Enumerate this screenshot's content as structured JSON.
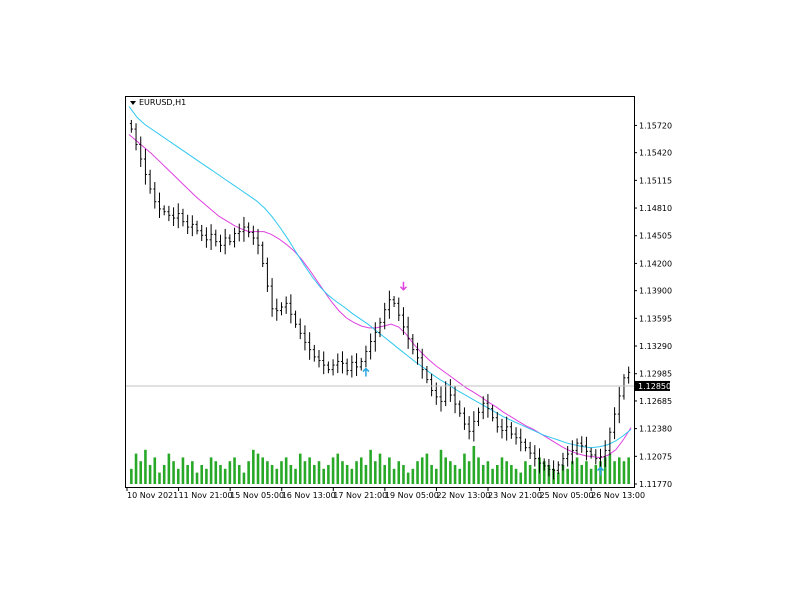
{
  "header": {
    "symbol_label": "EURUSD,H1",
    "menu_icon": "chevron-down-icon"
  },
  "price_axis": {
    "ticks": [
      "1.15720",
      "1.15420",
      "1.15115",
      "1.14810",
      "1.14505",
      "1.14200",
      "1.13900",
      "1.13595",
      "1.13290",
      "1.12985",
      "1.12685",
      "1.12380",
      "1.12075",
      "1.11770"
    ],
    "current_price": "1.12850"
  },
  "time_axis": {
    "labels": [
      "10 Nov 2021",
      "11 Nov 21:00",
      "15 Nov 05:00",
      "16 Nov 13:00",
      "17 Nov 21:00",
      "19 Nov 05:00",
      "22 Nov 13:00",
      "23 Nov 21:00",
      "25 Nov 05:00",
      "26 Nov 13:00"
    ]
  },
  "colors": {
    "candle": "#000000",
    "ma_fast": "#e040e0",
    "ma_slow": "#30c8f0",
    "volume": "#27a827",
    "current_price_line": "#c0c0c0",
    "arrow_up": "#29a6e0",
    "arrow_down": "#e040e0"
  },
  "chart_data": {
    "type": "candlestick",
    "title": "EURUSD,H1",
    "ylim": [
      1.1177,
      1.1589
    ],
    "close": [
      1.1568,
      1.1551,
      1.1535,
      1.1518,
      1.1502,
      1.1488,
      1.148,
      1.1477,
      1.1473,
      1.147,
      1.1475,
      1.1466,
      1.146,
      1.1463,
      1.1456,
      1.1451,
      1.1446,
      1.1452,
      1.1444,
      1.144,
      1.1448,
      1.1444,
      1.1453,
      1.1455,
      1.146,
      1.1454,
      1.1448,
      1.144,
      1.142,
      1.1395,
      1.137,
      1.1368,
      1.1372,
      1.1376,
      1.1364,
      1.1353,
      1.1343,
      1.1333,
      1.1325,
      1.1317,
      1.1313,
      1.1308,
      1.1303,
      1.1308,
      1.1312,
      1.131,
      1.1302,
      1.1311,
      1.1306,
      1.1312,
      1.1323,
      1.1334,
      1.1344,
      1.1355,
      1.1369,
      1.138,
      1.1376,
      1.1363,
      1.135,
      1.1337,
      1.1325,
      1.1316,
      1.1303,
      1.1292,
      1.128,
      1.1273,
      1.1268,
      1.1285,
      1.1275,
      1.1265,
      1.1255,
      1.1243,
      1.1235,
      1.1246,
      1.1256,
      1.1266,
      1.126,
      1.125,
      1.124,
      1.1236,
      1.124,
      1.1232,
      1.1228,
      1.1223,
      1.1217,
      1.1211,
      1.1205,
      1.12,
      1.1197,
      1.1193,
      1.1192,
      1.1198,
      1.1205,
      1.121,
      1.1214,
      1.1222,
      1.1219,
      1.1213,
      1.1209,
      1.1205,
      1.1207,
      1.1214,
      1.1234,
      1.1254,
      1.1274,
      1.1294,
      1.13
    ],
    "series": [
      {
        "name": "",
        "values": [
          1.1562,
          1.1555,
          1.1548,
          1.1541,
          1.1533,
          1.1525,
          1.1517,
          1.1509,
          1.1501,
          1.1493,
          1.1486,
          1.1479,
          1.1472,
          1.1467,
          1.1462,
          1.1458,
          1.1455,
          1.1455,
          1.1455,
          1.1452,
          1.1447,
          1.1441,
          1.1434,
          1.1425,
          1.1414,
          1.1402,
          1.139,
          1.1378,
          1.1368,
          1.136,
          1.1355,
          1.1351,
          1.1349,
          1.1349,
          1.1351,
          1.1353,
          1.135,
          1.1342,
          1.1331,
          1.1322,
          1.1314,
          1.1307,
          1.1301,
          1.1295,
          1.1289,
          1.1283,
          1.1278,
          1.1273,
          1.1267,
          1.1262,
          1.1256,
          1.1251,
          1.1246,
          1.1241,
          1.1237,
          1.1232,
          1.1227,
          1.1222,
          1.1217,
          1.1213,
          1.121,
          1.1208,
          1.1207,
          1.1206,
          1.1209,
          1.1215,
          1.1226,
          1.1239
        ]
      },
      {
        "name": "",
        "values": [
          1.1593,
          1.1581,
          1.1573,
          1.1567,
          1.1561,
          1.1555,
          1.1549,
          1.1543,
          1.1537,
          1.1531,
          1.1525,
          1.1519,
          1.1513,
          1.1507,
          1.1501,
          1.1495,
          1.1489,
          1.1481,
          1.1471,
          1.1459,
          1.1446,
          1.1432,
          1.1418,
          1.1405,
          1.1394,
          1.1385,
          1.1378,
          1.1372,
          1.1365,
          1.1359,
          1.1353,
          1.1346,
          1.1339,
          1.1332,
          1.1325,
          1.1318,
          1.1311,
          1.1305,
          1.1298,
          1.1292,
          1.1287,
          1.1281,
          1.1276,
          1.1271,
          1.1266,
          1.1261,
          1.1256,
          1.1251,
          1.1247,
          1.1243,
          1.1239,
          1.1235,
          1.1231,
          1.1228,
          1.1225,
          1.1222,
          1.122,
          1.1218,
          1.1217,
          1.1218,
          1.122,
          1.1224,
          1.123,
          1.1237
        ]
      }
    ],
    "volume": [
      4,
      8,
      6,
      9,
      5,
      7,
      3,
      5,
      8,
      6,
      4,
      7,
      5,
      6,
      3,
      5,
      4,
      7,
      6,
      5,
      4,
      6,
      7,
      5,
      3,
      6,
      9,
      8,
      7,
      6,
      5,
      4,
      6,
      7,
      5,
      4,
      8,
      6,
      7,
      5,
      6,
      4,
      5,
      7,
      8,
      6,
      5,
      4,
      6,
      7,
      5,
      9,
      6,
      8,
      5,
      7,
      4,
      6,
      5,
      3,
      4,
      6,
      7,
      8,
      5,
      4,
      9,
      7,
      6,
      5,
      4,
      8,
      6,
      10,
      7,
      5,
      6,
      4,
      5,
      7,
      6,
      5,
      4,
      3,
      6,
      5,
      4,
      7,
      6,
      5,
      4,
      3,
      5,
      4,
      6,
      7,
      5,
      6,
      4,
      5,
      6,
      7,
      8,
      6,
      7,
      6,
      7
    ],
    "signals": [
      {
        "type": "buy",
        "price": 1.1313
      },
      {
        "type": "sell",
        "price": 1.138
      },
      {
        "type": "buy",
        "price": 1.1204
      }
    ],
    "current_price": 1.1285,
    "yticks": [
      "1.15720",
      "1.15420",
      "1.15115",
      "1.14810",
      "1.14505",
      "1.14200",
      "1.13900",
      "1.13595",
      "1.13290",
      "1.12985",
      "1.12685",
      "1.12380",
      "1.12075",
      "1.11770"
    ],
    "xticks": [
      "10 Nov 2021",
      "11 Nov 21:00",
      "15 Nov 05:00",
      "16 Nov 13:00",
      "17 Nov 21:00",
      "19 Nov 05:00",
      "22 Nov 13:00",
      "23 Nov 21:00",
      "25 Nov 05:00",
      "26 Nov 13:00"
    ]
  }
}
